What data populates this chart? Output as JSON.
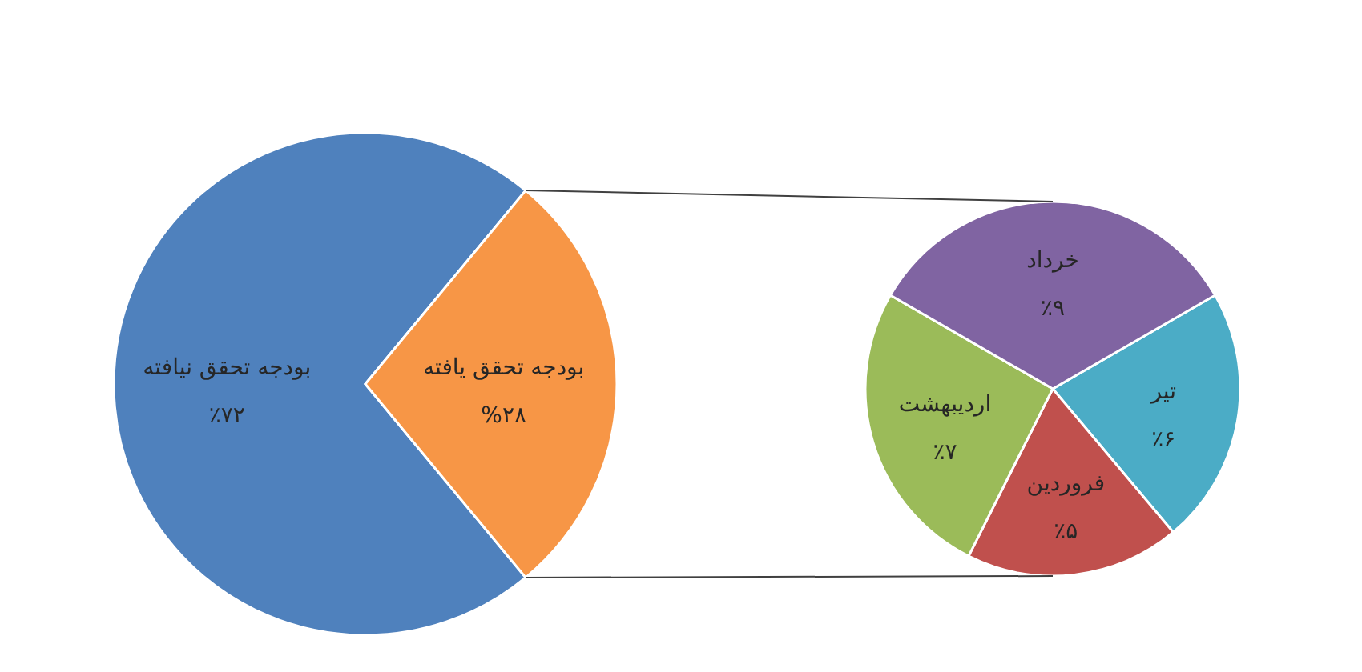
{
  "chart_data": [
    {
      "type": "pie",
      "categories": [
        "بودجه تحقق نیافته",
        "بودجه تحقق یافته"
      ],
      "values": [
        72,
        28
      ],
      "colors": [
        "#4f81bd",
        "#f79646"
      ],
      "value_labels": [
        "٪۷۲",
        "%۲۸"
      ]
    },
    {
      "type": "pie",
      "categories": [
        "تیر",
        "فروردین",
        "اردیبهشت",
        "خرداد"
      ],
      "values": [
        6,
        5,
        7,
        9
      ],
      "colors": [
        "#4bacc6",
        "#c0504d",
        "#9bbb59",
        "#8064a2"
      ],
      "value_labels": [
        "٪۶",
        "٪۵",
        "٪۷",
        "٪۹"
      ]
    }
  ]
}
